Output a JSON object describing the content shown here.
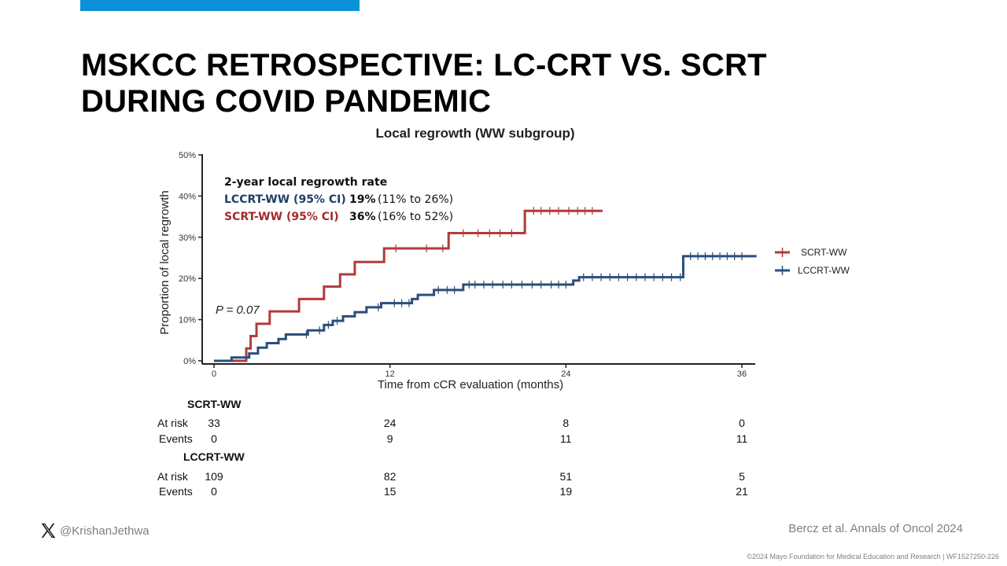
{
  "slide": {
    "accent_color": "#0a91d8",
    "title_line1": "MSKCC RETROSPECTIVE: LC-CRT VS. SCRT",
    "title_line2": "DURING COVID PANDEMIC",
    "social_icon": "x-logo-icon",
    "handle": "@KrishanJethwa",
    "citation": "Bercz et al. Annals of Oncol 2024",
    "copyright": "©2024 Mayo Foundation for Medical Education and Research  |  WF1527250-226"
  },
  "chart_data": {
    "type": "line",
    "subtype": "kaplan-meier cumulative incidence (step)",
    "title": "Local regrowth (WW subgroup)",
    "xlabel": "Time from cCR evaluation (months)",
    "ylabel": "Proportion of local regrowth",
    "xlim": [
      0,
      37
    ],
    "ylim": [
      0,
      50
    ],
    "xticks": [
      0,
      12,
      24,
      36
    ],
    "yticks": [
      0,
      10,
      20,
      30,
      40,
      50
    ],
    "ytick_labels": [
      "0%",
      "10%",
      "20%",
      "30%",
      "40%",
      "50%"
    ],
    "grid": false,
    "legend_position": "right",
    "annotation_pvalue": "P = 0.07",
    "rate_box": {
      "heading": "2-year local regrowth rate",
      "rows": [
        {
          "label": "LCCRT-WW (95% CI)",
          "rate": "19%",
          "ci": "(11% to 26%)",
          "color": "#1f3f66"
        },
        {
          "label": "SCRT-WW (95% CI)",
          "rate": "36%",
          "ci": "(16% to 52%)",
          "color": "#a32a2a"
        }
      ]
    },
    "series": [
      {
        "name": "SCRT-WW",
        "color": "#b33a3a",
        "steps": [
          [
            0,
            0
          ],
          [
            2.2,
            3
          ],
          [
            2.5,
            6
          ],
          [
            2.9,
            9
          ],
          [
            3.8,
            12
          ],
          [
            5.8,
            15
          ],
          [
            7.5,
            18
          ],
          [
            8.6,
            21
          ],
          [
            9.6,
            24
          ],
          [
            11.6,
            27.3
          ],
          [
            16,
            31
          ],
          [
            21.2,
            36.4
          ],
          [
            26.5,
            36.4
          ]
        ],
        "censors": [
          12.4,
          14.5,
          15.6,
          17,
          18,
          18.8,
          19.5,
          20.3,
          21.8,
          22.3,
          22.9,
          23.5,
          24.2,
          24.8,
          25.3,
          25.8
        ]
      },
      {
        "name": "LCCRT-WW",
        "color": "#2b4f7a",
        "steps": [
          [
            0,
            0
          ],
          [
            1.2,
            0.8
          ],
          [
            2.4,
            1.8
          ],
          [
            3,
            3.2
          ],
          [
            3.6,
            4.3
          ],
          [
            4.4,
            5.3
          ],
          [
            4.9,
            6.4
          ],
          [
            6.4,
            7.4
          ],
          [
            7.5,
            8.7
          ],
          [
            8.1,
            9.7
          ],
          [
            8.8,
            10.8
          ],
          [
            9.6,
            11.8
          ],
          [
            10.4,
            13
          ],
          [
            11.4,
            14
          ],
          [
            13.5,
            15
          ],
          [
            13.9,
            16
          ],
          [
            15,
            17.2
          ],
          [
            17,
            18.5
          ],
          [
            24.5,
            19.5
          ],
          [
            24.9,
            20.3
          ],
          [
            32,
            25.4
          ],
          [
            37,
            25.4
          ]
        ],
        "censors": [
          6.3,
          7.2,
          7.8,
          8.4,
          11.2,
          12.3,
          12.8,
          13.3,
          15.3,
          15.9,
          16.4,
          17.4,
          17.8,
          18.4,
          19,
          19.7,
          20.3,
          21,
          21.7,
          22.3,
          23,
          23.5,
          24,
          25.2,
          25.8,
          26.4,
          27,
          27.6,
          28.2,
          28.8,
          29.4,
          30,
          30.6,
          31.2,
          31.8,
          32.5,
          33,
          33.5,
          34,
          34.5,
          35,
          35.5,
          36
        ]
      }
    ],
    "risk_table": {
      "columns_x": [
        0,
        12,
        24,
        36
      ],
      "row_labels": {
        "at_risk": "At risk",
        "events": "Events"
      },
      "groups": [
        {
          "name": "SCRT-WW",
          "at_risk": [
            "33",
            "24",
            "8",
            "0"
          ],
          "events": [
            "0",
            "9",
            "11",
            "11"
          ]
        },
        {
          "name": "LCCRT-WW",
          "at_risk": [
            "109",
            "82",
            "51",
            "5"
          ],
          "events": [
            "0",
            "15",
            "19",
            "21"
          ]
        }
      ]
    }
  }
}
